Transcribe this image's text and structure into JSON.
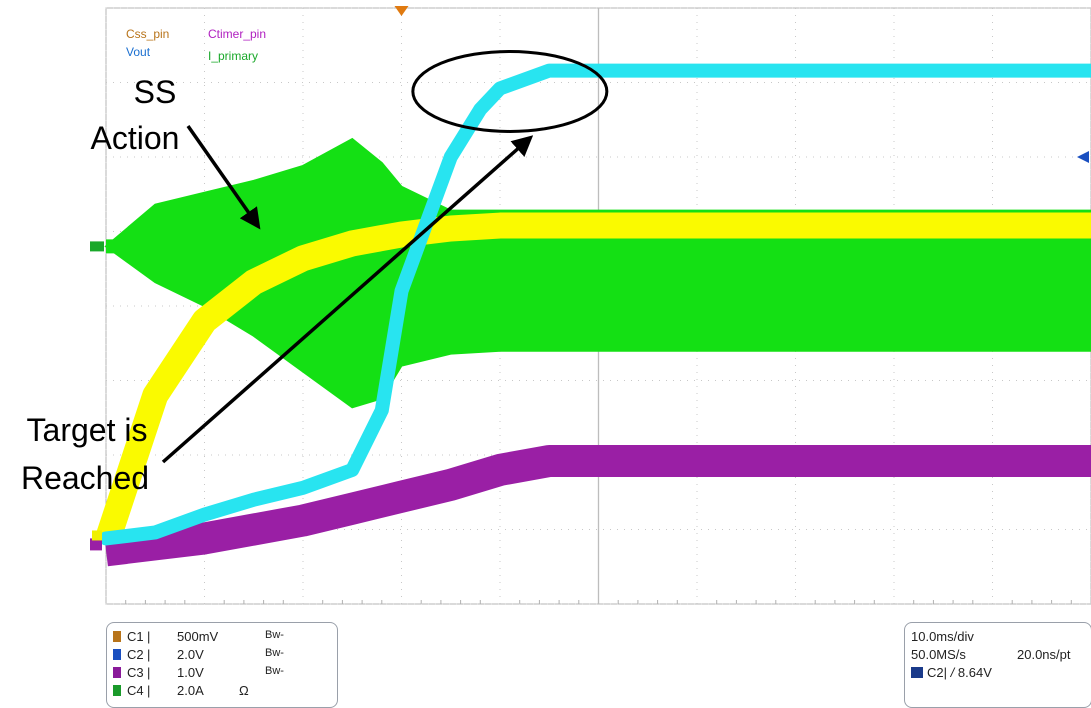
{
  "chart_data": {
    "type": "line",
    "title": "",
    "xlabel": "",
    "ylabel": "",
    "grid": true,
    "x_divisions": 10,
    "y_divisions": 8,
    "xlim": [
      0,
      100
    ],
    "x_unit": "ms",
    "legend_placement": "top-left",
    "series": [
      {
        "name": "Css_pin",
        "channel": "C1",
        "color": "#b8741a",
        "visible": false
      },
      {
        "name": "Vout",
        "channel": "C2",
        "color": "#28e4f0",
        "x": [
          0,
          5,
          10,
          15,
          20,
          25,
          28,
          30,
          35,
          38,
          40,
          45,
          50,
          100
        ],
        "y": [
          2.2,
          2.4,
          3.0,
          3.5,
          3.9,
          4.5,
          6.5,
          10.5,
          15.0,
          16.6,
          17.3,
          17.9,
          17.9,
          17.9
        ]
      },
      {
        "name": "Ctimer_pin",
        "channel": "C3",
        "color": "#9a1fa5",
        "x": [
          0,
          5,
          10,
          15,
          20,
          25,
          30,
          35,
          40,
          45,
          50,
          100
        ],
        "y": [
          1.8,
          2.0,
          2.2,
          2.5,
          2.8,
          3.2,
          3.6,
          4.0,
          4.5,
          4.8,
          4.8,
          4.8
        ]
      },
      {
        "name": "I_primary",
        "channel": "C4",
        "color": "#14e014",
        "x": [
          0,
          5,
          10,
          15,
          20,
          25,
          28,
          30,
          35,
          40,
          45,
          50,
          100
        ],
        "y_upper": [
          12.0,
          13.4,
          13.8,
          14.2,
          14.7,
          15.6,
          14.8,
          14.0,
          13.2,
          13.2,
          13.2,
          13.2,
          13.2
        ],
        "y_lower": [
          12.0,
          10.8,
          10.0,
          9.0,
          7.8,
          6.6,
          6.9,
          8.0,
          8.4,
          8.5,
          8.5,
          8.5,
          8.5
        ]
      },
      {
        "name": "",
        "channel": "",
        "color": "#fafa00",
        "x": [
          0,
          5,
          10,
          15,
          20,
          25,
          30,
          35,
          40,
          45,
          50,
          100
        ],
        "y_center": [
          2.0,
          7.0,
          9.5,
          10.8,
          11.6,
          12.1,
          12.4,
          12.6,
          12.7,
          12.7,
          12.7,
          12.7
        ]
      }
    ],
    "annotations": [
      {
        "text": "SS\nAction",
        "points_to": "I_primary peak"
      },
      {
        "text": "Target is\nReached",
        "points_to": "Vout plateau (circled)"
      }
    ]
  },
  "legend": {
    "css": "Css_pin",
    "ctimer": "Ctimer_pin",
    "vout": "Vout",
    "iprimary": "I_primary"
  },
  "annotations": {
    "ss1": "SS",
    "ss2": "Action",
    "target1": "Target is",
    "target2": "Reached"
  },
  "channels": [
    {
      "id": "C1",
      "scale": "500mV",
      "bw": "Bw-",
      "term": "",
      "color": "#b8741a"
    },
    {
      "id": "C2",
      "scale": "2.0V",
      "bw": "Bw-",
      "term": "",
      "color": "#1a4fc0"
    },
    {
      "id": "C3",
      "scale": "1.0V",
      "bw": "Bw-",
      "term": "",
      "color": "#8a1a9a"
    },
    {
      "id": "C4",
      "scale": "2.0A",
      "bw": "",
      "term": "Ω",
      "color": "#1a9a2a"
    }
  ],
  "timebase": {
    "time_div": "10.0ms/div",
    "sample_rate": "50.0MS/s",
    "resolution": "20.0ns/pt",
    "trigger_channel": "C2",
    "trigger_symbol": "/",
    "trigger_level": "8.64V"
  },
  "colors": {
    "css": "#b8741a",
    "ctimer": "#b020c0",
    "vout": "#1a6fd0",
    "iprimary": "#1aa82a",
    "grid": "#b4b4b4"
  }
}
